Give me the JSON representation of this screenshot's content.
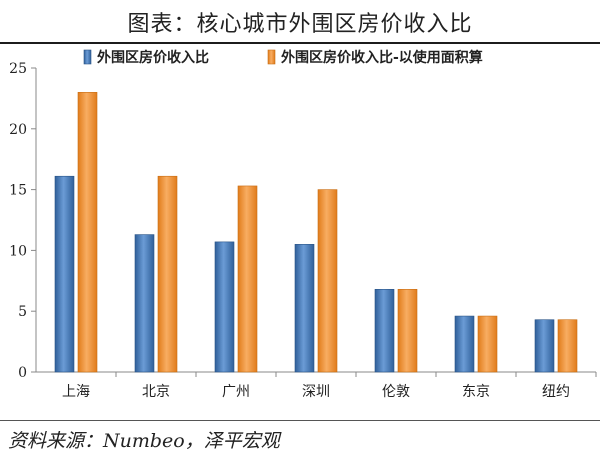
{
  "title": "图表：核心城市外围区房价收入比",
  "source": "资料来源：Numbeo，泽平宏观",
  "colors": {
    "series1": "#4a7ebb",
    "series2": "#f28e2b",
    "axis": "#888888"
  },
  "chart_data": {
    "type": "bar",
    "categories": [
      "上海",
      "北京",
      "广州",
      "深圳",
      "伦敦",
      "东京",
      "纽约"
    ],
    "series": [
      {
        "name": "外围区房价收入比",
        "values": [
          16.1,
          11.3,
          10.7,
          10.5,
          6.8,
          4.6,
          4.3
        ]
      },
      {
        "name": "外围区房价收入比-以使用面积算",
        "values": [
          23.0,
          16.1,
          15.3,
          15.0,
          6.8,
          4.6,
          4.3
        ]
      }
    ],
    "ylim": [
      0,
      25
    ],
    "yticks": [
      0,
      5,
      10,
      15,
      20,
      25
    ],
    "grid": false,
    "legend": "top"
  }
}
